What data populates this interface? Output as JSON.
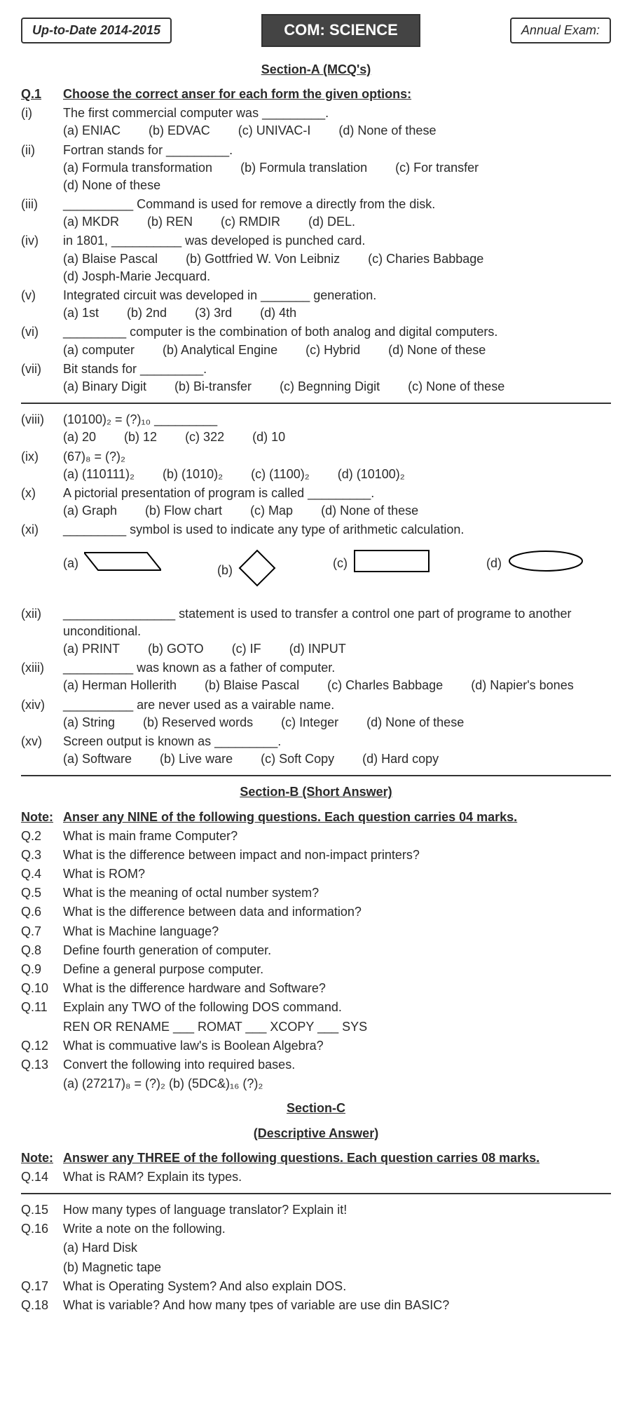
{
  "header": {
    "left": "Up-to-Date 2014-2015",
    "center": "COM: SCIENCE",
    "right": "Annual Exam:"
  },
  "secA": {
    "title": "Section-A (MCQ's)",
    "q1_num": "Q.1",
    "q1_inst": "Choose the correct anser for each form the given options:",
    "items": [
      {
        "n": "(i)",
        "q": "The first commercial computer was _________.",
        "o": [
          "(a) ENIAC",
          "(b) EDVAC",
          "(c) UNIVAC-I",
          "(d) None of these"
        ]
      },
      {
        "n": "(ii)",
        "q": "Fortran stands for _________.",
        "o": [
          "(a) Formula transformation",
          "(b) Formula translation",
          "(c) For transfer",
          "(d) None of these"
        ]
      },
      {
        "n": "(iii)",
        "q": "__________ Command is used for remove a directly from the disk.",
        "o": [
          "(a) MKDR",
          "(b) REN",
          "(c) RMDIR",
          "(d) DEL."
        ]
      },
      {
        "n": "(iv)",
        "q": "in 1801, __________ was developed is punched card.",
        "o": [
          "(a) Blaise Pascal",
          "(b) Gottfried W. Von Leibniz",
          "(c) Charies Babbage",
          "(d) Josph-Marie Jecquard."
        ]
      },
      {
        "n": "(v)",
        "q": "Integrated circuit was developed in _______ generation.",
        "o": [
          "(a) 1st",
          "(b) 2nd",
          "(3) 3rd",
          "(d) 4th"
        ]
      },
      {
        "n": "(vi)",
        "q": "_________ computer is the combination of both analog and digital computers.",
        "o": [
          "(a) computer",
          "(b) Analytical Engine",
          "(c) Hybrid",
          "(d) None of these"
        ]
      },
      {
        "n": "(vii)",
        "q": "Bit stands for _________.",
        "o": [
          "(a) Binary Digit",
          "(b) Bi-transfer",
          "(c) Begnning Digit",
          "(c) None of these"
        ]
      }
    ],
    "items2": [
      {
        "n": "(viii)",
        "q": "(10100)₂ = (?)₁₀ _________",
        "o": [
          "(a) 20",
          "(b) 12",
          "(c) 322",
          "(d) 10"
        ]
      },
      {
        "n": "(ix)",
        "q": "(67)₈ = (?)₂",
        "o": [
          "(a) (110111)₂",
          "(b) (1010)₂",
          "(c) (1100)₂",
          "(d) (10100)₂"
        ]
      },
      {
        "n": "(x)",
        "q": "A pictorial presentation of program is called _________.",
        "o": [
          "(a) Graph",
          "(b) Flow chart",
          "(c) Map",
          "(d) None of these"
        ]
      },
      {
        "n": "(xi)",
        "q": "_________ symbol is used to indicate any type of arithmetic calculation."
      },
      {
        "n": "(xii)",
        "q": "________________ statement is used to transfer a control one part of programe to another unconditional.",
        "o": [
          "(a) PRINT",
          "(b) GOTO",
          "(c) IF",
          "(d) INPUT"
        ]
      },
      {
        "n": "(xiii)",
        "q": "__________ was known as a father of computer.",
        "o": [
          "(a) Herman Hollerith",
          "(b) Blaise Pascal",
          "(c) Charles Babbage",
          "(d) Napier's bones"
        ]
      },
      {
        "n": "(xiv)",
        "q": "__________ are never used as a vairable name.",
        "o": [
          "(a) String",
          "(b) Reserved words",
          "(c) Integer",
          "(d) None of these"
        ]
      },
      {
        "n": "(xv)",
        "q": "Screen output is known as _________.",
        "o": [
          "(a) Software",
          "(b) Live ware",
          "(c) Soft Copy",
          "(d) Hard copy"
        ]
      }
    ],
    "xi_opts": [
      "(a)",
      "(b)",
      "(c)",
      "(d)"
    ]
  },
  "secB": {
    "title": "Section-B (Short Answer)",
    "note_label": "Note:",
    "note": "Anser any NINE of the following questions. Each question carries 04 marks.",
    "qs": [
      {
        "n": "Q.2",
        "t": "What is main frame Computer?"
      },
      {
        "n": "Q.3",
        "t": "What is the difference between impact and non-impact printers?"
      },
      {
        "n": "Q.4",
        "t": "What is ROM?"
      },
      {
        "n": "Q.5",
        "t": "What is the meaning of octal number system?"
      },
      {
        "n": "Q.6",
        "t": "What is the difference between data and information?"
      },
      {
        "n": "Q.7",
        "t": "What is Machine language?"
      },
      {
        "n": "Q.8",
        "t": "Define fourth generation of computer."
      },
      {
        "n": "Q.9",
        "t": "Define a general purpose computer."
      },
      {
        "n": "Q.10",
        "t": "What is the difference hardware and Software?"
      },
      {
        "n": "Q.11",
        "t": "Explain any TWO of the following DOS command."
      },
      {
        "n": "",
        "t": "REN OR RENAME ___   ROMAT ___   XCOPY ___   SYS"
      },
      {
        "n": "Q.12",
        "t": "What is commuative law's is Boolean Algebra?"
      },
      {
        "n": "Q.13",
        "t": "Convert the following into required bases."
      },
      {
        "n": "",
        "t": "(a) (27217)₈ = (?)₂     (b) (5DC&)₁₆ (?)₂"
      }
    ]
  },
  "secC": {
    "title": "Section-C",
    "sub": "(Descriptive Answer)",
    "note_label": "Note:",
    "note": "Answer any THREE of the following questions. Each question carries 08 marks.",
    "qs": [
      {
        "n": "Q.14",
        "t": "What is RAM? Explain its types."
      }
    ],
    "qs2": [
      {
        "n": "Q.15",
        "t": "How many types of language translator? Explain it!"
      },
      {
        "n": "Q.16",
        "t": "Write a note on the following."
      },
      {
        "n": "",
        "t": "(a) Hard Disk"
      },
      {
        "n": "",
        "t": "(b) Magnetic tape"
      },
      {
        "n": "Q.17",
        "t": "What is Operating System? And also explain DOS."
      },
      {
        "n": "Q.18",
        "t": "What is variable? And how many tpes of variable are use din BASIC?"
      }
    ]
  }
}
